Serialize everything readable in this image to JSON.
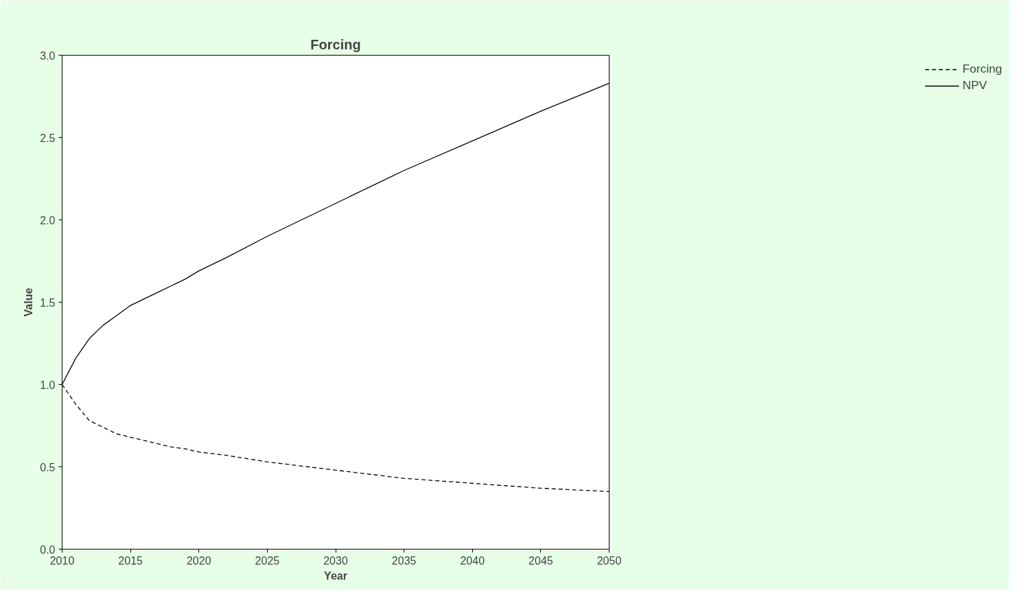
{
  "chart_data": {
    "type": "line",
    "title": "Forcing",
    "xlabel": "Year",
    "ylabel": "Value",
    "x": [
      2010,
      2011,
      2012,
      2013,
      2014,
      2015,
      2016,
      2017,
      2018,
      2019,
      2020,
      2022,
      2025,
      2030,
      2035,
      2040,
      2045,
      2050
    ],
    "series": [
      {
        "name": "Forcing",
        "color": "#000000",
        "line_style": "dashed",
        "values": [
          1.0,
          0.88,
          0.78,
          0.74,
          0.7,
          0.68,
          0.66,
          0.64,
          0.62,
          0.61,
          0.59,
          0.57,
          0.53,
          0.48,
          0.43,
          0.4,
          0.37,
          0.35
        ]
      },
      {
        "name": "NPV",
        "color": "#000000",
        "line_style": "solid",
        "values": [
          1.0,
          1.16,
          1.28,
          1.36,
          1.42,
          1.48,
          1.52,
          1.56,
          1.6,
          1.64,
          1.69,
          1.77,
          1.9,
          2.1,
          2.3,
          2.48,
          2.66,
          2.83
        ]
      }
    ],
    "xlim": [
      2010,
      2050
    ],
    "xticks": [
      2010,
      2015,
      2020,
      2025,
      2030,
      2035,
      2040,
      2045,
      2050
    ],
    "ylim": [
      0,
      3
    ],
    "yticks": [
      {
        "value": 0,
        "label": "0.0"
      },
      {
        "value": 0.5,
        "label": "0.5"
      },
      {
        "value": 1,
        "label": "1.0"
      },
      {
        "value": 1.5,
        "label": "1.5"
      },
      {
        "value": 2,
        "label": "2.0"
      },
      {
        "value": 2.5,
        "label": "2.5"
      },
      {
        "value": 3,
        "label": "3.0"
      }
    ],
    "grid": false,
    "legend": "right",
    "marker": "none"
  }
}
